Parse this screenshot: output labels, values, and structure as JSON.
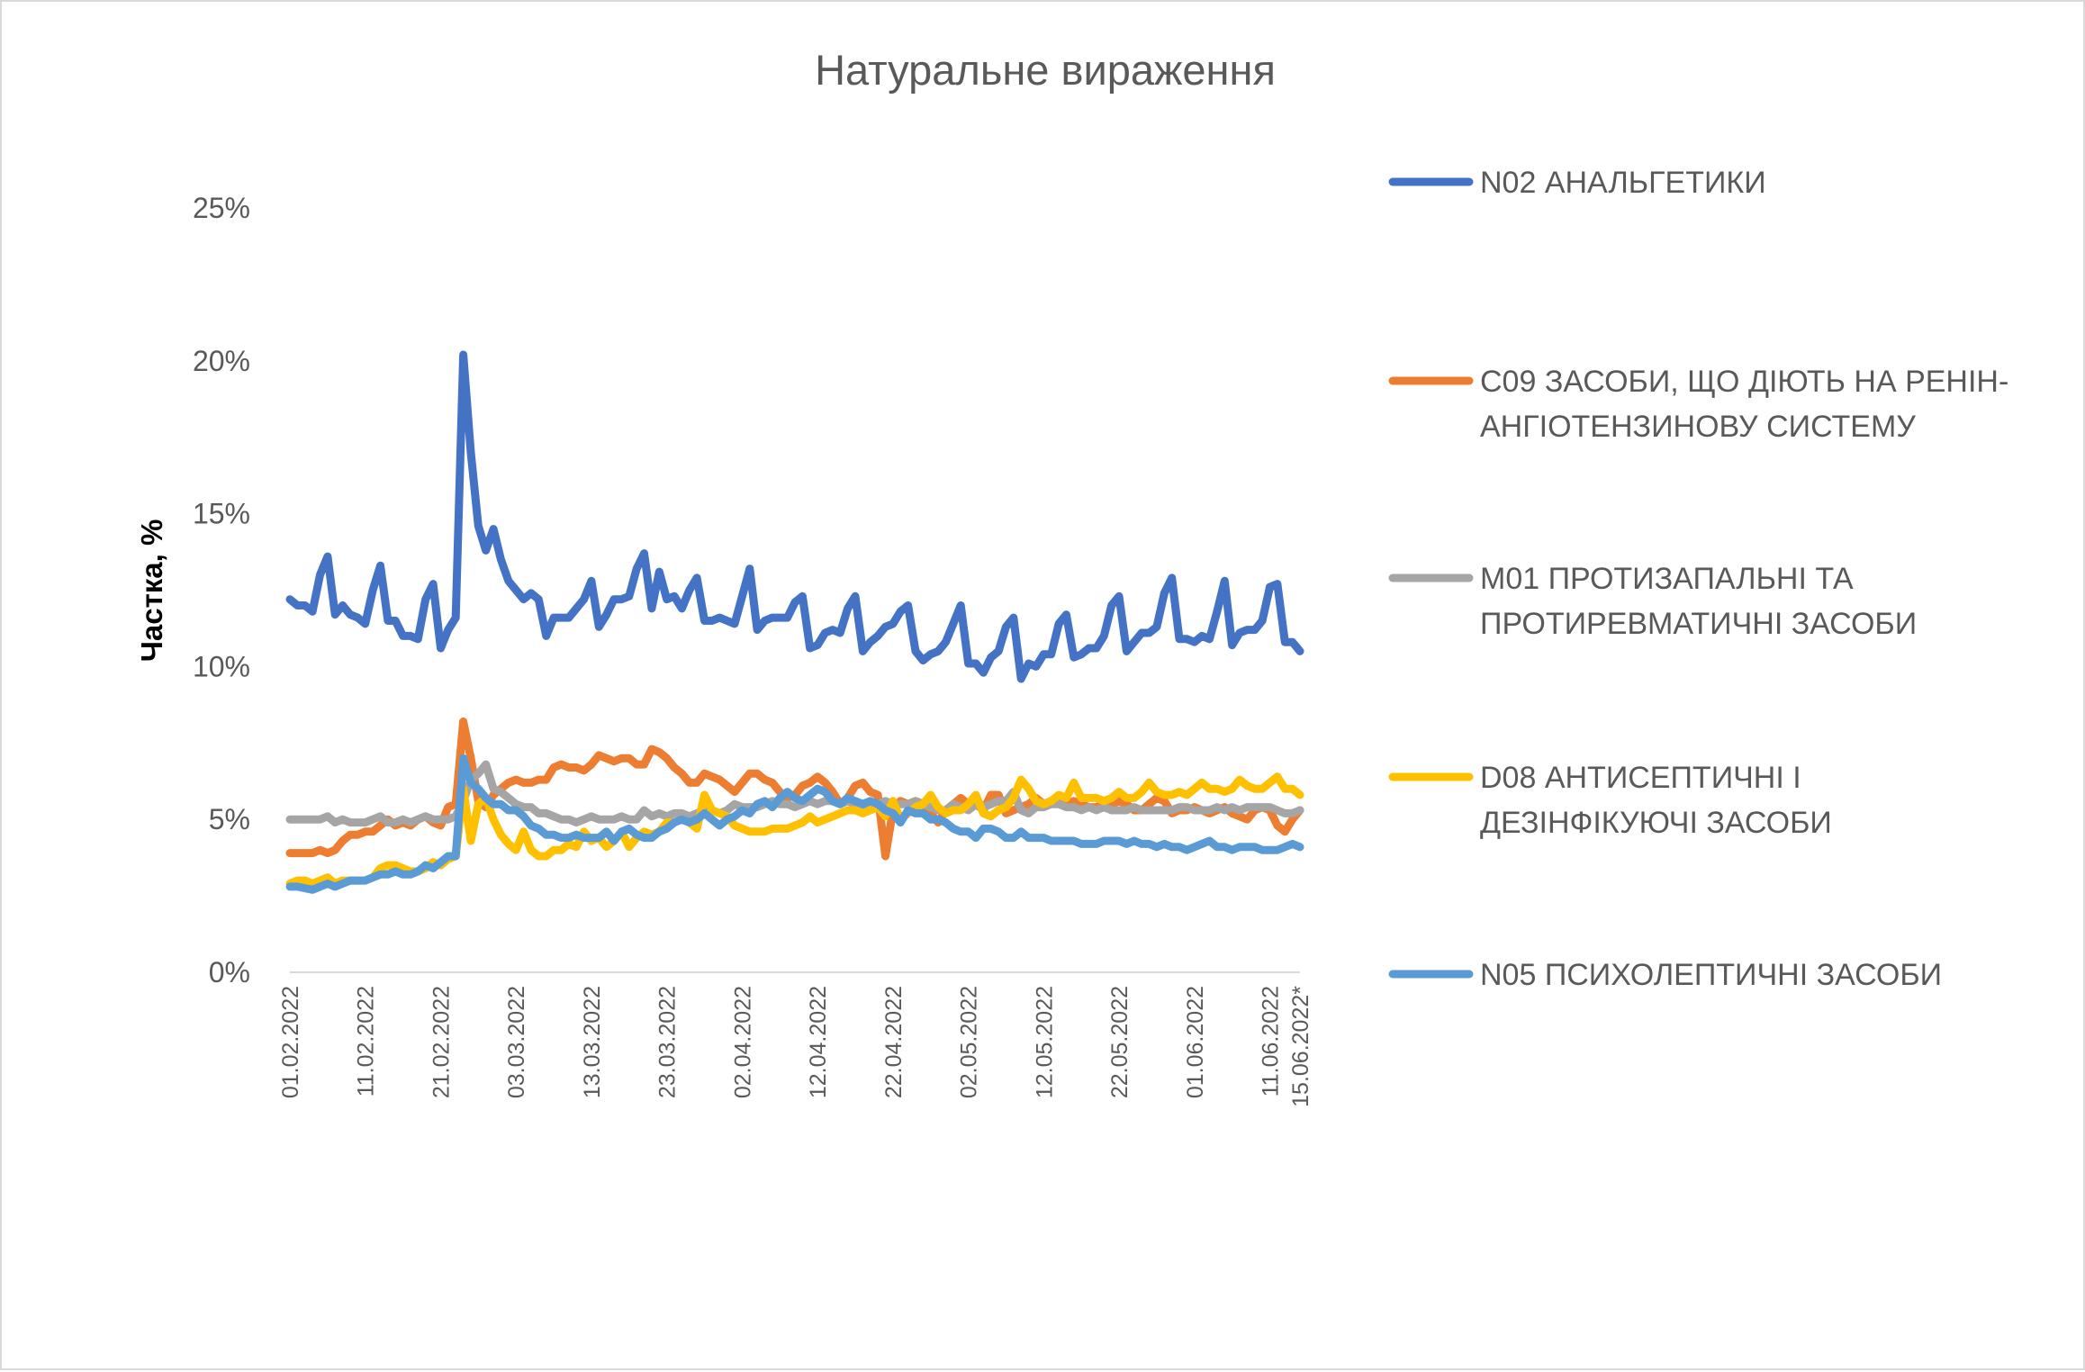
{
  "chart_data": {
    "type": "line",
    "title": "Натуральне вираження",
    "xlabel": "",
    "ylabel": "Частка, %",
    "ylim": [
      0,
      25
    ],
    "yticks": [
      "0%",
      "5%",
      "10%",
      "15%",
      "20%",
      "25%"
    ],
    "ytick_values": [
      0,
      5,
      10,
      15,
      20,
      25
    ],
    "grid": false,
    "legend_position": "right",
    "x_count": 135,
    "xticks": [
      {
        "index": 0,
        "label": "01.02.2022"
      },
      {
        "index": 10,
        "label": "11.02.2022"
      },
      {
        "index": 20,
        "label": "21.02.2022"
      },
      {
        "index": 30,
        "label": "03.03.2022"
      },
      {
        "index": 40,
        "label": "13.03.2022"
      },
      {
        "index": 50,
        "label": "23.03.2022"
      },
      {
        "index": 60,
        "label": "02.04.2022"
      },
      {
        "index": 70,
        "label": "12.04.2022"
      },
      {
        "index": 80,
        "label": "22.04.2022"
      },
      {
        "index": 90,
        "label": "02.05.2022"
      },
      {
        "index": 100,
        "label": "12.05.2022"
      },
      {
        "index": 110,
        "label": "22.05.2022"
      },
      {
        "index": 120,
        "label": "01.06.2022"
      },
      {
        "index": 130,
        "label": "11.06.2022"
      },
      {
        "index": 134,
        "label": "15.06.2022*"
      }
    ],
    "series": [
      {
        "name": "N02 АНАЛЬГЕТИКИ",
        "legend_lines": [
          "N02 АНАЛЬГЕТИКИ"
        ],
        "color": "#4472C4",
        "values": [
          12.2,
          12.0,
          12.0,
          11.8,
          13.0,
          13.6,
          11.7,
          12.0,
          11.7,
          11.6,
          11.4,
          12.5,
          13.3,
          11.5,
          11.5,
          11.0,
          11.0,
          10.9,
          12.2,
          12.7,
          10.6,
          11.2,
          11.6,
          20.2,
          17.0,
          14.6,
          13.8,
          14.5,
          13.5,
          12.8,
          12.5,
          12.2,
          12.4,
          12.2,
          11.0,
          11.6,
          11.6,
          11.6,
          11.9,
          12.2,
          12.8,
          11.3,
          11.7,
          12.2,
          12.2,
          12.3,
          13.2,
          13.7,
          11.9,
          13.1,
          12.2,
          12.3,
          11.9,
          12.5,
          12.9,
          11.5,
          11.5,
          11.6,
          11.5,
          11.4,
          12.3,
          13.2,
          11.2,
          11.5,
          11.6,
          11.6,
          11.6,
          12.1,
          12.3,
          10.6,
          10.7,
          11.1,
          11.2,
          11.1,
          11.9,
          12.3,
          10.5,
          10.8,
          11.0,
          11.3,
          11.4,
          11.8,
          12.0,
          10.5,
          10.2,
          10.4,
          10.5,
          10.8,
          11.4,
          12.0,
          10.1,
          10.1,
          9.8,
          10.3,
          10.5,
          11.3,
          11.6,
          9.6,
          10.1,
          10.0,
          10.4,
          10.4,
          11.4,
          11.7,
          10.3,
          10.4,
          10.6,
          10.6,
          11.0,
          12.0,
          12.3,
          10.5,
          10.8,
          11.1,
          11.1,
          11.3,
          12.4,
          12.9,
          10.9,
          10.9,
          10.8,
          11.0,
          10.9,
          11.8,
          12.8,
          10.7,
          11.1,
          11.2,
          11.2,
          11.5,
          12.6,
          12.7,
          10.8,
          10.8,
          10.5
        ]
      },
      {
        "name": "C09 ЗАСОБИ, ЩО ДІЮТЬ НА РЕНІН-АНГІОТЕНЗИНОВУ СИСТЕМУ",
        "legend_lines": [
          "C09 ЗАСОБИ, ЩО ДІЮТЬ НА РЕНІН-",
          "АНГІОТЕНЗИНОВУ СИСТЕМУ"
        ],
        "color": "#ED7D31",
        "values": [
          3.9,
          3.9,
          3.9,
          3.9,
          4.0,
          3.9,
          4.0,
          4.3,
          4.5,
          4.5,
          4.6,
          4.6,
          4.8,
          5.0,
          4.8,
          4.9,
          4.8,
          5.0,
          5.1,
          4.9,
          4.8,
          5.4,
          5.5,
          8.2,
          7.0,
          5.6,
          5.4,
          5.8,
          6.0,
          6.2,
          6.3,
          6.2,
          6.2,
          6.3,
          6.3,
          6.7,
          6.8,
          6.7,
          6.7,
          6.6,
          6.8,
          7.1,
          7.0,
          6.9,
          7.0,
          7.0,
          6.8,
          6.8,
          7.3,
          7.2,
          7.0,
          6.7,
          6.5,
          6.2,
          6.2,
          6.5,
          6.4,
          6.3,
          6.1,
          5.9,
          6.2,
          6.5,
          6.5,
          6.3,
          6.2,
          5.9,
          5.7,
          5.8,
          6.1,
          6.2,
          6.4,
          6.2,
          5.9,
          5.5,
          5.7,
          6.1,
          6.2,
          5.9,
          5.8,
          3.8,
          5.3,
          5.6,
          5.5,
          5.6,
          5.5,
          5.2,
          4.9,
          5.3,
          5.5,
          5.7,
          5.5,
          5.5,
          5.3,
          5.8,
          5.8,
          5.2,
          5.3,
          5.4,
          5.5,
          5.7,
          5.5,
          5.6,
          5.6,
          5.5,
          5.6,
          5.5,
          5.4,
          5.4,
          5.5,
          5.5,
          5.6,
          5.5,
          5.3,
          5.3,
          5.5,
          5.7,
          5.6,
          5.2,
          5.3,
          5.3,
          5.4,
          5.3,
          5.2,
          5.3,
          5.4,
          5.2,
          5.1,
          5.0,
          5.3,
          5.4,
          5.3,
          4.8,
          4.6,
          5.0,
          5.3
        ]
      },
      {
        "name": "M01 ПРОТИЗАПАЛЬНІ ТА ПРОТИРЕВМАТИЧНІ ЗАСОБИ",
        "legend_lines": [
          "M01 ПРОТИЗАПАЛЬНІ ТА",
          "ПРОТИРЕВМАТИЧНІ ЗАСОБИ"
        ],
        "color": "#A5A5A5",
        "values": [
          5.0,
          5.0,
          5.0,
          5.0,
          5.0,
          5.1,
          4.9,
          5.0,
          4.9,
          4.9,
          4.9,
          5.0,
          5.1,
          4.9,
          4.9,
          5.0,
          4.9,
          5.0,
          5.1,
          5.0,
          5.0,
          5.0,
          5.1,
          5.6,
          6.3,
          6.5,
          6.8,
          6.0,
          5.9,
          5.7,
          5.5,
          5.4,
          5.4,
          5.2,
          5.2,
          5.1,
          5.0,
          5.0,
          4.9,
          5.0,
          5.1,
          5.0,
          5.0,
          5.0,
          5.1,
          5.0,
          5.0,
          5.3,
          5.1,
          5.2,
          5.1,
          5.2,
          5.2,
          5.1,
          5.2,
          5.3,
          5.3,
          5.2,
          5.3,
          5.5,
          5.4,
          5.4,
          5.4,
          5.5,
          5.6,
          5.5,
          5.5,
          5.4,
          5.5,
          5.6,
          5.5,
          5.6,
          5.6,
          5.5,
          5.6,
          5.5,
          5.4,
          5.5,
          5.5,
          5.6,
          5.5,
          5.5,
          5.5,
          5.6,
          5.5,
          5.4,
          5.3,
          5.3,
          5.5,
          5.4,
          5.3,
          5.5,
          5.4,
          5.5,
          5.6,
          5.6,
          5.9,
          5.3,
          5.2,
          5.4,
          5.4,
          5.5,
          5.5,
          5.4,
          5.4,
          5.3,
          5.4,
          5.3,
          5.4,
          5.3,
          5.3,
          5.3,
          5.4,
          5.3,
          5.3,
          5.3,
          5.3,
          5.3,
          5.4,
          5.4,
          5.3,
          5.3,
          5.3,
          5.4,
          5.3,
          5.4,
          5.3,
          5.4,
          5.4,
          5.4,
          5.4,
          5.3,
          5.2,
          5.2,
          5.3
        ]
      },
      {
        "name": "D08 АНТИСЕПТИЧНІ І ДЕЗІНФІКУЮЧІ ЗАСОБИ",
        "legend_lines": [
          "D08 АНТИСЕПТИЧНІ І",
          "ДЕЗІНФІКУЮЧІ ЗАСОБИ"
        ],
        "color": "#FFC000",
        "values": [
          2.9,
          3.0,
          3.0,
          2.9,
          3.0,
          3.1,
          2.9,
          3.0,
          3.0,
          3.0,
          3.0,
          3.1,
          3.4,
          3.5,
          3.5,
          3.4,
          3.3,
          3.3,
          3.4,
          3.6,
          3.5,
          3.7,
          3.8,
          6.0,
          4.3,
          5.5,
          5.7,
          5.0,
          4.5,
          4.2,
          4.0,
          4.6,
          4.0,
          3.8,
          3.8,
          4.0,
          4.0,
          4.2,
          4.1,
          4.6,
          4.3,
          4.4,
          4.1,
          4.3,
          4.6,
          4.1,
          4.4,
          4.6,
          4.5,
          4.6,
          4.9,
          4.9,
          5.0,
          4.9,
          4.7,
          5.8,
          5.3,
          5.2,
          5.1,
          4.8,
          4.7,
          4.6,
          4.6,
          4.6,
          4.7,
          4.7,
          4.7,
          4.8,
          4.9,
          5.1,
          4.9,
          5.0,
          5.1,
          5.2,
          5.3,
          5.3,
          5.2,
          5.3,
          5.4,
          5.1,
          5.6,
          5.0,
          5.2,
          5.4,
          5.5,
          5.8,
          5.4,
          5.2,
          5.3,
          5.3,
          5.5,
          5.8,
          5.2,
          5.1,
          5.3,
          5.4,
          5.7,
          6.3,
          6.0,
          5.6,
          5.5,
          5.6,
          5.8,
          5.7,
          6.2,
          5.7,
          5.7,
          5.7,
          5.6,
          5.7,
          5.9,
          5.7,
          5.7,
          5.9,
          6.2,
          5.9,
          5.8,
          5.8,
          5.9,
          5.8,
          6.0,
          6.2,
          6.0,
          6.0,
          5.9,
          6.0,
          6.3,
          6.1,
          6.0,
          6.0,
          6.2,
          6.4,
          6.0,
          6.0,
          5.8
        ]
      },
      {
        "name": "N05 ПСИХОЛЕПТИЧНІ ЗАСОБИ",
        "legend_lines": [
          "N05 ПСИХОЛЕПТИЧНІ ЗАСОБИ"
        ],
        "color": "#5B9BD5",
        "values": [
          2.8,
          2.8,
          2.75,
          2.7,
          2.8,
          2.9,
          2.8,
          2.9,
          3.0,
          3.0,
          3.0,
          3.1,
          3.2,
          3.2,
          3.3,
          3.2,
          3.2,
          3.3,
          3.5,
          3.4,
          3.6,
          3.8,
          3.8,
          7.0,
          6.2,
          6.0,
          5.7,
          5.5,
          5.5,
          5.3,
          5.3,
          5.1,
          4.8,
          4.7,
          4.5,
          4.5,
          4.4,
          4.4,
          4.5,
          4.4,
          4.4,
          4.4,
          4.6,
          4.3,
          4.6,
          4.7,
          4.5,
          4.4,
          4.4,
          4.6,
          4.7,
          4.9,
          5.0,
          4.9,
          5.0,
          5.2,
          5.0,
          4.8,
          5.0,
          5.1,
          5.3,
          5.2,
          5.5,
          5.6,
          5.4,
          5.7,
          5.9,
          5.7,
          5.6,
          5.8,
          6.0,
          5.9,
          5.6,
          5.5,
          5.7,
          5.6,
          5.5,
          5.6,
          5.5,
          5.3,
          5.2,
          4.9,
          5.3,
          5.2,
          5.2,
          5.0,
          5.0,
          4.9,
          4.7,
          4.6,
          4.6,
          4.4,
          4.7,
          4.7,
          4.6,
          4.4,
          4.4,
          4.6,
          4.4,
          4.4,
          4.4,
          4.3,
          4.3,
          4.3,
          4.3,
          4.2,
          4.2,
          4.2,
          4.3,
          4.3,
          4.3,
          4.2,
          4.3,
          4.2,
          4.2,
          4.1,
          4.2,
          4.1,
          4.1,
          4.0,
          4.1,
          4.2,
          4.3,
          4.1,
          4.1,
          4.0,
          4.1,
          4.1,
          4.1,
          4.0,
          4.0,
          4.0,
          4.1,
          4.2,
          4.1
        ]
      }
    ]
  }
}
